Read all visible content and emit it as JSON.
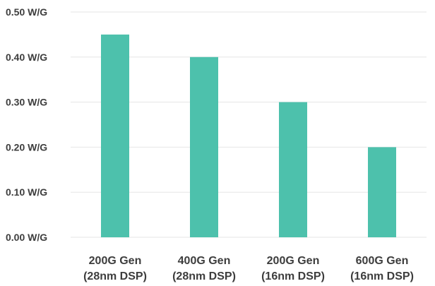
{
  "chart_data": {
    "type": "bar",
    "title": "",
    "xlabel": "",
    "ylabel": "",
    "categories": [
      [
        "200G Gen",
        "(28nm DSP)"
      ],
      [
        "400G Gen",
        "(28nm DSP)"
      ],
      [
        "200G Gen",
        "(16nm DSP)"
      ],
      [
        "600G Gen",
        "(16nm DSP)"
      ]
    ],
    "values": [
      0.45,
      0.4,
      0.3,
      0.2
    ],
    "y_ticks": [
      {
        "value": 0.0,
        "label": "0.00 W/G"
      },
      {
        "value": 0.1,
        "label": "0.10 W/G"
      },
      {
        "value": 0.2,
        "label": "0.20 W/G"
      },
      {
        "value": 0.3,
        "label": "0.30 W/G"
      },
      {
        "value": 0.4,
        "label": "0.40 W/G"
      },
      {
        "value": 0.5,
        "label": "0.50 W/G"
      }
    ],
    "ylim": [
      0,
      0.5
    ],
    "grid": true,
    "legend": "none",
    "bar_color": "#4dc1ac"
  }
}
